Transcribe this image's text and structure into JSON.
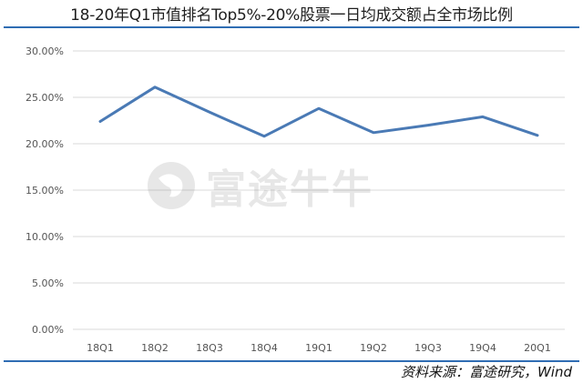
{
  "chart_data": {
    "type": "line",
    "title": "18-20年Q1市值排名Top5%-20%股票一日均成交额占全市场比例",
    "xlabel": "",
    "ylabel": "",
    "categories": [
      "18Q1",
      "18Q2",
      "18Q3",
      "18Q4",
      "19Q1",
      "19Q2",
      "19Q3",
      "19Q4",
      "20Q1"
    ],
    "series": [
      {
        "values": [
          22.4,
          26.1,
          23.4,
          20.8,
          23.8,
          21.2,
          22.0,
          22.9,
          20.9
        ]
      }
    ],
    "ylim": [
      0,
      30
    ],
    "yticks": [
      "0.00%",
      "5.00%",
      "10.00%",
      "15.00%",
      "20.00%",
      "25.00%",
      "30.00%"
    ],
    "ytick_values": [
      0,
      5,
      10,
      15,
      20,
      25,
      30
    ],
    "grid": true,
    "legend": "none",
    "line_color": "#4a7ab5",
    "grid_color": "#d9d9d9"
  },
  "watermark": {
    "text": "富途牛牛"
  },
  "source": "资料来源：富途研究，Wind"
}
